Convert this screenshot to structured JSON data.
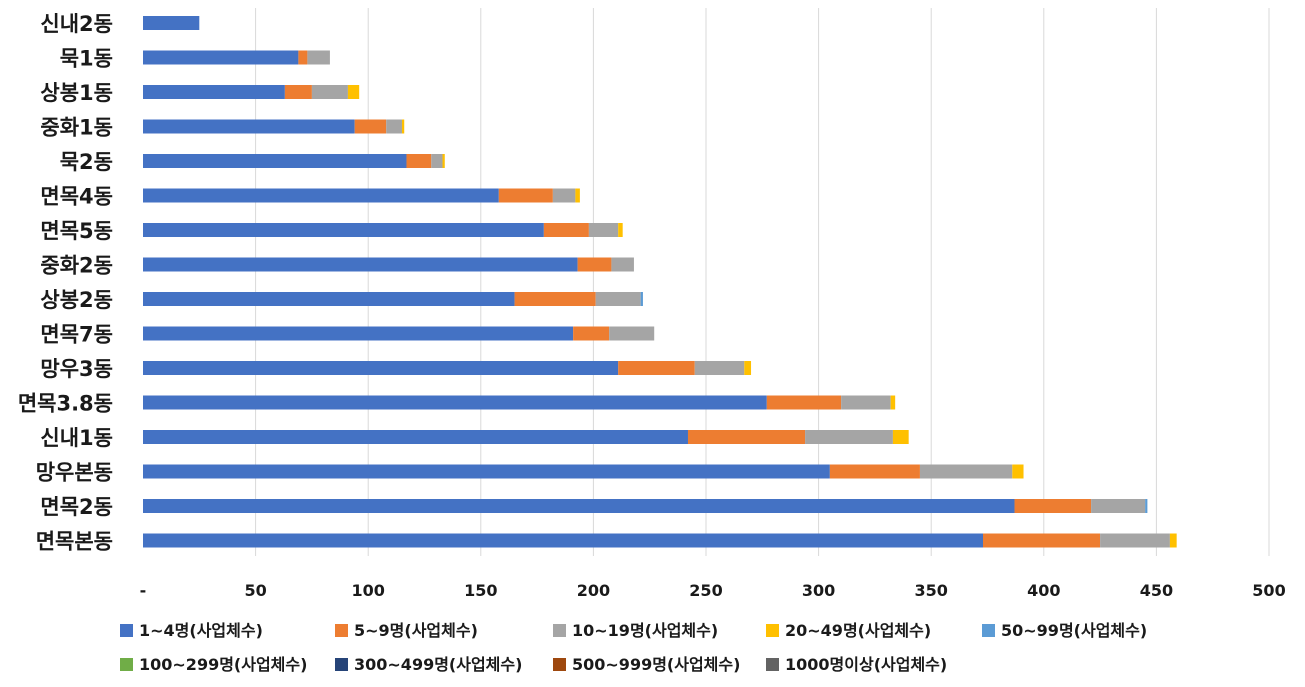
{
  "chart_data": {
    "type": "bar",
    "orientation": "horizontal",
    "stacked": true,
    "title": "",
    "xlabel": "",
    "ylabel": "",
    "xlim": [
      0,
      500
    ],
    "grid": true,
    "legend_position": "bottom",
    "x_ticks": [
      "-",
      "50",
      "100",
      "150",
      "200",
      "250",
      "300",
      "350",
      "400",
      "450",
      "500"
    ],
    "categories": [
      "신내2동",
      "묵1동",
      "상봉1동",
      "중화1동",
      "묵2동",
      "면목4동",
      "면목5동",
      "중화2동",
      "상봉2동",
      "면목7동",
      "망우3동",
      "면목3.8동",
      "신내1동",
      "망우본동",
      "면목2동",
      "면목본동"
    ],
    "series": [
      {
        "name": "1~4명(사업체수)",
        "color": "#4472C4",
        "values": [
          25,
          69,
          63,
          94,
          117,
          158,
          178,
          193,
          165,
          191,
          211,
          277,
          242,
          305,
          387,
          373
        ]
      },
      {
        "name": "5~9명(사업체수)",
        "color": "#ED7D31",
        "values": [
          0,
          4,
          12,
          14,
          11,
          24,
          20,
          15,
          36,
          16,
          34,
          33,
          52,
          40,
          34,
          52
        ]
      },
      {
        "name": "10~19명(사업체수)",
        "color": "#A5A5A5",
        "values": [
          0,
          10,
          16,
          7,
          5,
          10,
          13,
          10,
          20,
          20,
          22,
          22,
          39,
          41,
          24,
          31
        ]
      },
      {
        "name": "20~49명(사업체수)",
        "color": "#FFC000",
        "values": [
          0,
          0,
          5,
          1,
          1,
          2,
          2,
          0,
          0,
          0,
          3,
          2,
          7,
          5,
          0,
          3
        ]
      },
      {
        "name": "50~99명(사업체수)",
        "color": "#5B9BD5",
        "values": [
          0,
          0,
          0,
          0,
          0,
          0,
          0,
          0,
          1,
          0,
          0,
          0,
          0,
          0,
          1,
          0
        ]
      },
      {
        "name": "100~299명(사업체수)",
        "color": "#70AD47",
        "values": [
          0,
          0,
          0,
          0,
          0,
          0,
          0,
          0,
          0,
          0,
          0,
          0,
          0,
          0,
          0,
          0
        ]
      },
      {
        "name": "300~499명(사업체수)",
        "color": "#264478",
        "values": [
          0,
          0,
          0,
          0,
          0,
          0,
          0,
          0,
          0,
          0,
          0,
          0,
          0,
          0,
          0,
          0
        ]
      },
      {
        "name": "500~999명(사업체수)",
        "color": "#9E480E",
        "values": [
          0,
          0,
          0,
          0,
          0,
          0,
          0,
          0,
          0,
          0,
          0,
          0,
          0,
          0,
          0,
          0
        ]
      },
      {
        "name": "1000명이상(사업체수)",
        "color": "#636363",
        "values": [
          0,
          0,
          0,
          0,
          0,
          0,
          0,
          0,
          0,
          0,
          0,
          0,
          0,
          0,
          0,
          0
        ]
      }
    ]
  }
}
